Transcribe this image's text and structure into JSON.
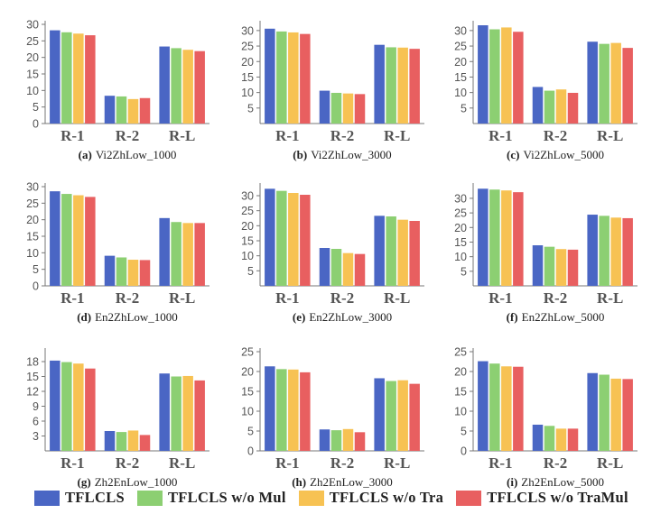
{
  "colors": [
    "#4a66c4",
    "#8ccf72",
    "#f7c253",
    "#e85f60"
  ],
  "legend": [
    "TFLCLS",
    "TFLCLS w/o Mul",
    "TFLCLS w/o Tra",
    "TFLCLS w/o TraMul"
  ],
  "chart_data": [
    {
      "type": "bar",
      "tag": "(a)",
      "title": "Vi2ZhLow_1000",
      "categories": [
        "R-1",
        "R-2",
        "R-L"
      ],
      "ylim": [
        0,
        30
      ],
      "yticks": [
        0,
        5,
        10,
        15,
        20,
        25,
        30
      ],
      "series": [
        {
          "name": "TFLCLS",
          "values": [
            28.2,
            8.4,
            23.3
          ]
        },
        {
          "name": "TFLCLS w/o Mul",
          "values": [
            27.6,
            8.2,
            22.8
          ]
        },
        {
          "name": "TFLCLS w/o Tra",
          "values": [
            27.2,
            7.4,
            22.3
          ]
        },
        {
          "name": "TFLCLS w/o TraMul",
          "values": [
            26.7,
            7.7,
            21.9
          ]
        }
      ]
    },
    {
      "type": "bar",
      "tag": "(b)",
      "title": "Vi2ZhLow_3000",
      "categories": [
        "R-1",
        "R-2",
        "R-L"
      ],
      "ylim": [
        0,
        32
      ],
      "yticks": [
        5,
        10,
        15,
        20,
        25,
        30
      ],
      "series": [
        {
          "name": "TFLCLS",
          "values": [
            30.6,
            10.6,
            25.4
          ]
        },
        {
          "name": "TFLCLS w/o Mul",
          "values": [
            29.7,
            9.9,
            24.6
          ]
        },
        {
          "name": "TFLCLS w/o Tra",
          "values": [
            29.4,
            9.7,
            24.5
          ]
        },
        {
          "name": "TFLCLS w/o TraMul",
          "values": [
            28.9,
            9.5,
            24.1
          ]
        }
      ]
    },
    {
      "type": "bar",
      "tag": "(c)",
      "title": "Vi2ZhLow_5000",
      "categories": [
        "R-1",
        "R-2",
        "R-L"
      ],
      "ylim": [
        0,
        32
      ],
      "yticks": [
        5,
        10,
        15,
        20,
        25,
        30
      ],
      "series": [
        {
          "name": "TFLCLS",
          "values": [
            31.7,
            11.8,
            26.4
          ]
        },
        {
          "name": "TFLCLS w/o Mul",
          "values": [
            30.4,
            10.6,
            25.7
          ]
        },
        {
          "name": "TFLCLS w/o Tra",
          "values": [
            31.0,
            11.0,
            26.0
          ]
        },
        {
          "name": "TFLCLS w/o TraMul",
          "values": [
            29.6,
            9.9,
            24.4
          ]
        }
      ]
    },
    {
      "type": "bar",
      "tag": "(d)",
      "title": "En2ZhLow_1000",
      "categories": [
        "R-1",
        "R-2",
        "R-L"
      ],
      "ylim": [
        0,
        30
      ],
      "yticks": [
        0,
        5,
        10,
        15,
        20,
        25,
        30
      ],
      "series": [
        {
          "name": "TFLCLS",
          "values": [
            28.6,
            9.1,
            20.5
          ]
        },
        {
          "name": "TFLCLS w/o Mul",
          "values": [
            27.8,
            8.6,
            19.3
          ]
        },
        {
          "name": "TFLCLS w/o Tra",
          "values": [
            27.4,
            7.9,
            19.0
          ]
        },
        {
          "name": "TFLCLS w/o TraMul",
          "values": [
            26.9,
            7.8,
            19.0
          ]
        }
      ]
    },
    {
      "type": "bar",
      "tag": "(e)",
      "title": "En2ZhLow_3000",
      "categories": [
        "R-1",
        "R-2",
        "R-L"
      ],
      "ylim": [
        0,
        33
      ],
      "yticks": [
        5,
        10,
        15,
        20,
        25,
        30
      ],
      "series": [
        {
          "name": "TFLCLS",
          "values": [
            32.3,
            12.6,
            23.3
          ]
        },
        {
          "name": "TFLCLS w/o Mul",
          "values": [
            31.6,
            12.3,
            23.1
          ]
        },
        {
          "name": "TFLCLS w/o Tra",
          "values": [
            30.9,
            10.9,
            22.0
          ]
        },
        {
          "name": "TFLCLS w/o TraMul",
          "values": [
            30.3,
            10.6,
            21.6
          ]
        }
      ]
    },
    {
      "type": "bar",
      "tag": "(f)",
      "title": "En2ZhLow_5000",
      "categories": [
        "R-1",
        "R-2",
        "R-L"
      ],
      "ylim": [
        0,
        34
      ],
      "yticks": [
        5,
        10,
        15,
        20,
        25,
        30
      ],
      "series": [
        {
          "name": "TFLCLS",
          "values": [
            33.3,
            13.9,
            24.4
          ]
        },
        {
          "name": "TFLCLS w/o Mul",
          "values": [
            33.0,
            13.4,
            24.0
          ]
        },
        {
          "name": "TFLCLS w/o Tra",
          "values": [
            32.7,
            12.6,
            23.4
          ]
        },
        {
          "name": "TFLCLS w/o TraMul",
          "values": [
            32.1,
            12.4,
            23.2
          ]
        }
      ]
    },
    {
      "type": "bar",
      "tag": "(g)",
      "title": "Zh2EnLow_1000",
      "categories": [
        "R-1",
        "R-2",
        "R-L"
      ],
      "ylim": [
        0,
        20
      ],
      "yticks": [
        3,
        6,
        9,
        12,
        15,
        18
      ],
      "series": [
        {
          "name": "TFLCLS",
          "values": [
            18.2,
            4.0,
            15.6
          ]
        },
        {
          "name": "TFLCLS w/o Mul",
          "values": [
            17.9,
            3.8,
            15.0
          ]
        },
        {
          "name": "TFLCLS w/o Tra",
          "values": [
            17.6,
            4.1,
            15.1
          ]
        },
        {
          "name": "TFLCLS w/o TraMul",
          "values": [
            16.6,
            3.2,
            14.2
          ]
        }
      ]
    },
    {
      "type": "bar",
      "tag": "(h)",
      "title": "Zh2EnLow_3000",
      "categories": [
        "R-1",
        "R-2",
        "R-L"
      ],
      "ylim": [
        0,
        25
      ],
      "yticks": [
        0,
        5,
        10,
        15,
        20,
        25
      ],
      "series": [
        {
          "name": "TFLCLS",
          "values": [
            21.3,
            5.4,
            18.3
          ]
        },
        {
          "name": "TFLCLS w/o Mul",
          "values": [
            20.6,
            5.2,
            17.6
          ]
        },
        {
          "name": "TFLCLS w/o Tra",
          "values": [
            20.5,
            5.5,
            17.8
          ]
        },
        {
          "name": "TFLCLS w/o TraMul",
          "values": [
            19.8,
            4.7,
            16.9
          ]
        }
      ]
    },
    {
      "type": "bar",
      "tag": "(i)",
      "title": "Zh2EnLow_5000",
      "categories": [
        "R-1",
        "R-2",
        "R-L"
      ],
      "ylim": [
        0,
        25
      ],
      "yticks": [
        0,
        5,
        10,
        15,
        20,
        25
      ],
      "series": [
        {
          "name": "TFLCLS",
          "values": [
            22.6,
            6.6,
            19.6
          ]
        },
        {
          "name": "TFLCLS w/o Mul",
          "values": [
            22.0,
            6.3,
            19.2
          ]
        },
        {
          "name": "TFLCLS w/o Tra",
          "values": [
            21.3,
            5.6,
            18.2
          ]
        },
        {
          "name": "TFLCLS w/o TraMul",
          "values": [
            21.2,
            5.6,
            18.1
          ]
        }
      ]
    }
  ]
}
